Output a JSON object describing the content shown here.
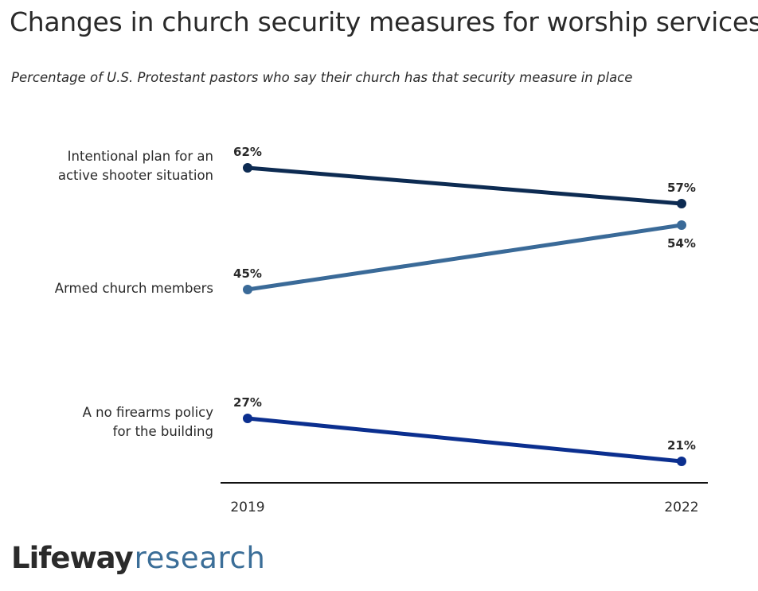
{
  "title": "Changes in church security measures for worship services",
  "subtitle": "Percentage of U.S. Protestant pastors who say their church has that security measure in place",
  "logo": {
    "brand": "Lifeway",
    "sub": "research"
  },
  "chart_data": {
    "type": "line",
    "title": "Changes in church security measures for worship services",
    "subtitle": "Percentage of U.S. Protestant pastors who say their church has that security measure in place",
    "x": [
      "2019",
      "2022"
    ],
    "unit": "%",
    "series": [
      {
        "name": "Intentional plan for an active shooter situation",
        "label_lines": [
          "Intentional plan for an",
          "active shooter situation"
        ],
        "values": [
          62,
          57
        ],
        "labels": [
          "62%",
          "57%"
        ],
        "color": "#0d2b52"
      },
      {
        "name": "Armed church members",
        "label_lines": [
          "Armed church members"
        ],
        "values": [
          45,
          54
        ],
        "labels": [
          "45%",
          "54%"
        ],
        "color": "#3a6a98"
      },
      {
        "name": "A no firearms policy for the building",
        "label_lines": [
          "A no firearms policy",
          "for the building"
        ],
        "values": [
          27,
          21
        ],
        "labels": [
          "27%",
          "21%"
        ],
        "color": "#0b2f8f"
      }
    ],
    "ylim": [
      17,
      67
    ]
  }
}
